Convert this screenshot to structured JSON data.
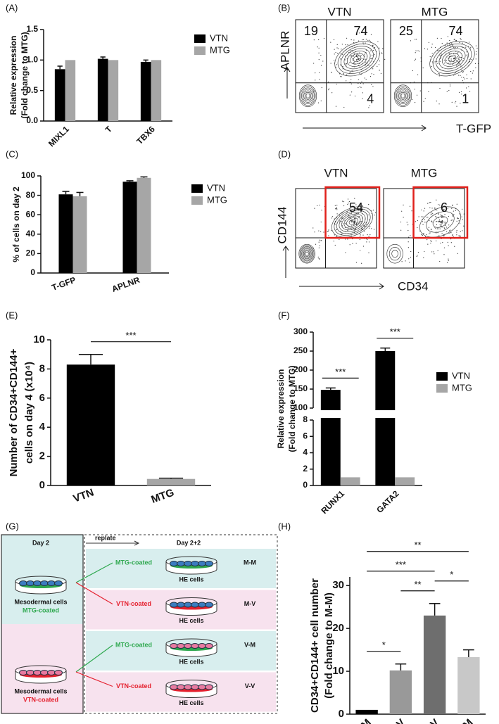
{
  "chart_data": [
    {
      "type": "bar",
      "panel": "(A)",
      "ylabel": [
        "Relative expression",
        "(Fold change to MTG)"
      ],
      "categories": [
        "MIXL1",
        "T",
        "TBX6"
      ],
      "series": [
        {
          "name": "VTN",
          "color": "#000000",
          "values": [
            0.85,
            1.02,
            0.97
          ],
          "errors": [
            0.05,
            0.03,
            0.03
          ]
        },
        {
          "name": "MTG",
          "color": "#a6a6a6",
          "values": [
            1,
            1,
            1
          ]
        }
      ],
      "ylim": [
        0,
        1.5
      ],
      "yticks": [
        {
          "value": 0,
          "label": "0.0"
        },
        {
          "value": 0.5,
          "label": "0.5"
        },
        {
          "value": 1,
          "label": "1.0"
        },
        {
          "value": 1.5,
          "label": "1.5"
        }
      ]
    },
    {
      "type": "bar",
      "panel": "(C)",
      "ylabel": "% of cells on day 2",
      "categories": [
        "T-GFP",
        "APLNR"
      ],
      "series": [
        {
          "name": "VTN",
          "color": "#000000",
          "values": [
            81,
            94
          ],
          "errors": [
            3,
            1
          ]
        },
        {
          "name": "MTG",
          "color": "#a6a6a6",
          "values": [
            79,
            98
          ],
          "errors": [
            4,
            1
          ]
        }
      ],
      "ylim": [
        0,
        100
      ],
      "yticks": [
        0,
        20,
        40,
        60,
        80,
        100
      ]
    },
    {
      "type": "bar",
      "panel": "(E)",
      "ylabel": [
        "Number of CD34+CD144+",
        "cells on day 4 (x10⁴)"
      ],
      "categories": [
        "VTN",
        "MTG"
      ],
      "values": [
        8.3,
        0.45
      ],
      "errors": [
        0.7,
        0.05
      ],
      "colors": [
        "#000000",
        "#a6a6a6"
      ],
      "ylim": [
        0,
        10
      ],
      "yticks": [
        0,
        2,
        4,
        6,
        8,
        10
      ],
      "significance": [
        {
          "label": "***",
          "between": [
            "VTN",
            "MTG"
          ]
        }
      ]
    },
    {
      "type": "bar",
      "panel": "(F)",
      "ylabel": [
        "Relative expression",
        "(Fold change to MTG)"
      ],
      "categories": [
        "RUNX1",
        "GATA2"
      ],
      "series": [
        {
          "name": "VTN",
          "color": "#000000",
          "values": [
            148,
            250
          ],
          "errors": [
            5,
            8
          ]
        },
        {
          "name": "MTG",
          "color": "#a6a6a6",
          "values": [
            1,
            1
          ]
        }
      ],
      "ylim": [
        0,
        300
      ],
      "ybreak": [
        8,
        100
      ],
      "yticks": [
        0,
        2,
        4,
        6,
        8,
        100,
        150,
        200,
        250,
        300
      ],
      "significance": [
        {
          "label": "***",
          "category": "RUNX1"
        },
        {
          "label": "***",
          "category": "GATA2"
        }
      ]
    },
    {
      "type": "bar",
      "panel": "(H)",
      "ylabel": [
        "CD34+CD144+ cell number",
        "(Fold change to M-M)"
      ],
      "categories": [
        "M-M",
        "M-V",
        "V-V",
        "V-M"
      ],
      "values": [
        1,
        10.2,
        23,
        13.3
      ],
      "errors": [
        null,
        1.5,
        2.8,
        1.7
      ],
      "colors": [
        "#000000",
        "#999999",
        "#6e6e6e",
        "#c8c8c8"
      ],
      "ylim": [
        0,
        32
      ],
      "yticks": [
        0,
        10,
        20,
        30
      ],
      "significance": [
        {
          "label": "**",
          "between": [
            "M-M",
            "V-M"
          ]
        },
        {
          "label": "***",
          "between": [
            "M-M",
            "V-V"
          ]
        },
        {
          "label": "**",
          "between": [
            "M-V",
            "V-V"
          ]
        },
        {
          "label": "*",
          "between": [
            "V-V",
            "V-M"
          ]
        },
        {
          "label": "*",
          "between": [
            "M-M",
            "M-V"
          ]
        }
      ]
    }
  ],
  "flow_panels": [
    {
      "panel": "(B)",
      "xlabel": "T-GFP",
      "ylabel": "APLNR",
      "plots": [
        {
          "title": "VTN",
          "quadrants": {
            "upper_left": 19,
            "upper_right": 74,
            "lower_right": 4
          }
        },
        {
          "title": "MTG",
          "quadrants": {
            "upper_left": 25,
            "upper_right": 74,
            "lower_right": 1
          }
        }
      ]
    },
    {
      "panel": "(D)",
      "xlabel": "CD34",
      "ylabel": "CD144",
      "gate_color": "#e0201b",
      "plots": [
        {
          "title": "VTN",
          "quadrants": {
            "upper_right": 54
          }
        },
        {
          "title": "MTG",
          "quadrants": {
            "upper_right": 6
          }
        }
      ]
    }
  ],
  "diagram": {
    "panel": "(G)",
    "left_title": "Day 2",
    "replate": "replate",
    "right_title": "Day 2+2",
    "left_rows": [
      {
        "cells": "Mesodermal cells",
        "coating": "MTG-coated",
        "color": "#2fa84f"
      },
      {
        "cells": "Mesodermal cells",
        "coating": "VTN-coated",
        "color": "#e5202e"
      }
    ],
    "right_rows": [
      {
        "coating": "MTG-coated",
        "color": "#2fa84f",
        "cells": "HE cells",
        "code": "M-M"
      },
      {
        "coating": "VTN-coated",
        "color": "#e5202e",
        "cells": "HE cells",
        "code": "M-V"
      },
      {
        "coating": "MTG-coated",
        "color": "#2fa84f",
        "cells": "HE cells",
        "code": "V-M"
      },
      {
        "coating": "VTN-coated",
        "color": "#e5202e",
        "cells": "HE cells",
        "code": "V-V"
      }
    ]
  }
}
